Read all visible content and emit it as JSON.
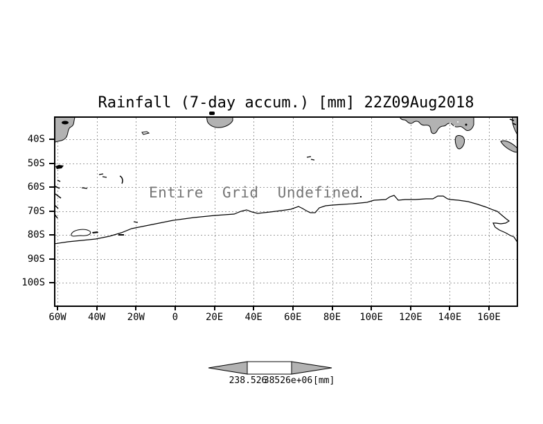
{
  "title": "Rainfall (7-day accum.) [mm] 22Z09Aug2018",
  "colors": {
    "land_fill": "#b2b2b2",
    "coastline": "#000000",
    "grid_line": "#9a9a9a",
    "message_text": "#757575",
    "colorbar_arrow_fill": "#b2b2b2",
    "colorbar_box_fill": "#ffffff"
  },
  "chart_data": {
    "type": "map",
    "title": "Rainfall (7-day accum.) [mm] 22Z09Aug2018",
    "status_message": "Entire Grid Undefined",
    "note": "GrADS-style geographic plot of Southern Ocean / Antarctica; no shaded rainfall field is drawn because the entire grid is undefined",
    "grid": true,
    "x_axis": {
      "ticks": [
        "60W",
        "40W",
        "20W",
        "0",
        "20E",
        "40E",
        "60E",
        "80E",
        "100E",
        "120E",
        "140E",
        "160E"
      ]
    },
    "y_axis": {
      "ticks": [
        "40S",
        "50S",
        "60S",
        "70S",
        "80S",
        "90S",
        "100S"
      ]
    },
    "values": null,
    "colorbar": {
      "shape": "double-arrow",
      "tick_labels": [
        "238.526",
        "38526e+06"
      ],
      "units_label": "[mm]"
    }
  }
}
